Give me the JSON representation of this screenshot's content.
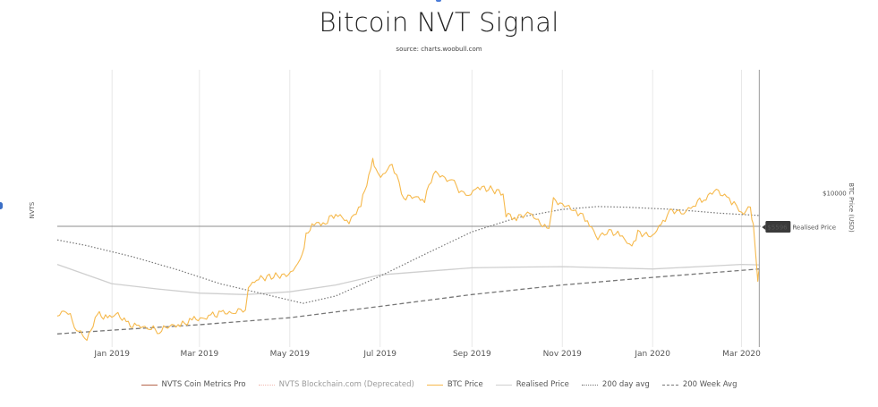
{
  "title": "Bitcoin NVT Signal",
  "subtitle": "source: charts.woobull.com",
  "colors": {
    "btc_price": "#f6b94c",
    "realised_price": "#cfcfcf",
    "ma200d": "#777777",
    "ma200w": "#777777",
    "nvts_cm": "#b5654b",
    "nvts_bc": "#f2b8ae",
    "grid": "#e8e8e8",
    "zero_line": "#8c8c8c",
    "price_tag_bg": "#3a3a3a"
  },
  "chart_data": {
    "type": "line",
    "title": "Bitcoin NVT Signal",
    "subtitle": "source: charts.woobull.com",
    "ylabel_left": "NVTS",
    "ylabel_right": "BTC Price (USD)",
    "y_right_scale": "log",
    "y_right_ticks": [
      {
        "label": "$10000",
        "value": 10000
      }
    ],
    "x_range": [
      "2018-11-25",
      "2020-03-14"
    ],
    "x_ticks": [
      {
        "label": "Jan 2019",
        "date": "2019-01-01"
      },
      {
        "label": "Mar 2019",
        "date": "2019-03-01"
      },
      {
        "label": "May 2019",
        "date": "2019-05-01"
      },
      {
        "label": "Jul 2019",
        "date": "2019-07-01"
      },
      {
        "label": "Sep 2019",
        "date": "2019-09-01"
      },
      {
        "label": "Nov 2019",
        "date": "2019-11-01"
      },
      {
        "label": "Jan 2020",
        "date": "2020-01-01"
      },
      {
        "label": "Mar 2020",
        "date": "2020-03-01"
      }
    ],
    "grid": "vertical",
    "legend_position": "bottom",
    "annotations": {
      "current_price_label": "$5596",
      "current_price": 5596,
      "realised_price_label": "Realised Price"
    },
    "series": [
      {
        "name": "BTC Price",
        "points": [
          [
            "2018-11-25",
            3900
          ],
          [
            "2018-12-01",
            4100
          ],
          [
            "2018-12-08",
            3550
          ],
          [
            "2018-12-15",
            3250
          ],
          [
            "2018-12-22",
            3950
          ],
          [
            "2018-12-29",
            3850
          ],
          [
            "2019-01-05",
            3950
          ],
          [
            "2019-01-12",
            3650
          ],
          [
            "2019-01-19",
            3600
          ],
          [
            "2019-01-26",
            3570
          ],
          [
            "2019-02-02",
            3480
          ],
          [
            "2019-02-09",
            3640
          ],
          [
            "2019-02-16",
            3620
          ],
          [
            "2019-02-24",
            3810
          ],
          [
            "2019-03-03",
            3810
          ],
          [
            "2019-03-10",
            3920
          ],
          [
            "2019-03-17",
            4000
          ],
          [
            "2019-03-24",
            4000
          ],
          [
            "2019-04-01",
            4150
          ],
          [
            "2019-04-03",
            4900
          ],
          [
            "2019-04-10",
            5200
          ],
          [
            "2019-04-20",
            5300
          ],
          [
            "2019-04-30",
            5350
          ],
          [
            "2019-05-08",
            5900
          ],
          [
            "2019-05-12",
            7200
          ],
          [
            "2019-05-16",
            7900
          ],
          [
            "2019-05-25",
            8000
          ],
          [
            "2019-06-01",
            8600
          ],
          [
            "2019-06-10",
            8000
          ],
          [
            "2019-06-18",
            9200
          ],
          [
            "2019-06-22",
            10700
          ],
          [
            "2019-06-26",
            12900
          ],
          [
            "2019-06-28",
            11800
          ],
          [
            "2019-07-03",
            11500
          ],
          [
            "2019-07-09",
            12600
          ],
          [
            "2019-07-17",
            9700
          ],
          [
            "2019-07-24",
            9800
          ],
          [
            "2019-07-31",
            9500
          ],
          [
            "2019-08-06",
            11800
          ],
          [
            "2019-08-12",
            11400
          ],
          [
            "2019-08-20",
            10800
          ],
          [
            "2019-08-28",
            9700
          ],
          [
            "2019-09-05",
            10500
          ],
          [
            "2019-09-15",
            10300
          ],
          [
            "2019-09-22",
            10000
          ],
          [
            "2019-09-24",
            8500
          ],
          [
            "2019-10-01",
            8300
          ],
          [
            "2019-10-10",
            8600
          ],
          [
            "2019-10-23",
            7500
          ],
          [
            "2019-10-26",
            9500
          ],
          [
            "2019-11-01",
            9200
          ],
          [
            "2019-11-10",
            8800
          ],
          [
            "2019-11-18",
            8100
          ],
          [
            "2019-11-25",
            7100
          ],
          [
            "2019-12-01",
            7500
          ],
          [
            "2019-12-10",
            7300
          ],
          [
            "2019-12-18",
            6600
          ],
          [
            "2019-12-22",
            7400
          ],
          [
            "2020-01-01",
            7200
          ],
          [
            "2020-01-08",
            8100
          ],
          [
            "2020-01-14",
            8800
          ],
          [
            "2020-01-22",
            8600
          ],
          [
            "2020-01-30",
            9300
          ],
          [
            "2020-02-06",
            9700
          ],
          [
            "2020-02-13",
            10300
          ],
          [
            "2020-02-20",
            9600
          ],
          [
            "2020-02-25",
            9300
          ],
          [
            "2020-03-01",
            8600
          ],
          [
            "2020-03-07",
            8900
          ],
          [
            "2020-03-09",
            7900
          ],
          [
            "2020-03-12",
            5200
          ],
          [
            "2020-03-13",
            5596
          ]
        ]
      },
      {
        "name": "Realised Price",
        "points": [
          [
            "2018-11-25",
            5800
          ],
          [
            "2019-01-01",
            5000
          ],
          [
            "2019-02-01",
            4800
          ],
          [
            "2019-03-01",
            4650
          ],
          [
            "2019-04-01",
            4600
          ],
          [
            "2019-05-01",
            4700
          ],
          [
            "2019-06-01",
            4950
          ],
          [
            "2019-07-01",
            5350
          ],
          [
            "2019-08-01",
            5500
          ],
          [
            "2019-09-01",
            5650
          ],
          [
            "2019-10-01",
            5680
          ],
          [
            "2019-11-01",
            5700
          ],
          [
            "2019-12-01",
            5650
          ],
          [
            "2020-01-01",
            5600
          ],
          [
            "2020-02-01",
            5700
          ],
          [
            "2020-03-01",
            5800
          ],
          [
            "2020-03-13",
            5780
          ]
        ]
      },
      {
        "name": "200 day avg",
        "points": [
          [
            "2018-11-25",
            7000
          ],
          [
            "2018-12-15",
            6700
          ],
          [
            "2019-01-15",
            6150
          ],
          [
            "2019-02-15",
            5550
          ],
          [
            "2019-03-15",
            5000
          ],
          [
            "2019-04-15",
            4600
          ],
          [
            "2019-05-10",
            4300
          ],
          [
            "2019-06-01",
            4550
          ],
          [
            "2019-07-01",
            5300
          ],
          [
            "2019-08-01",
            6300
          ],
          [
            "2019-09-01",
            7450
          ],
          [
            "2019-10-01",
            8300
          ],
          [
            "2019-11-01",
            8850
          ],
          [
            "2019-11-25",
            9050
          ],
          [
            "2019-12-15",
            9000
          ],
          [
            "2020-01-15",
            8850
          ],
          [
            "2020-02-15",
            8600
          ],
          [
            "2020-03-13",
            8450
          ]
        ]
      },
      {
        "name": "200 Week Avg",
        "points": [
          [
            "2018-11-25",
            3400
          ],
          [
            "2019-01-01",
            3500
          ],
          [
            "2019-03-01",
            3650
          ],
          [
            "2019-05-01",
            3850
          ],
          [
            "2019-07-01",
            4200
          ],
          [
            "2019-09-01",
            4600
          ],
          [
            "2019-11-01",
            4950
          ],
          [
            "2020-01-01",
            5250
          ],
          [
            "2020-03-13",
            5600
          ]
        ]
      }
    ]
  },
  "legend": [
    {
      "label": "NVTS Coin Metrics Pro",
      "style": "solid",
      "color": "#b5654b",
      "deprecated": false
    },
    {
      "label": "NVTS Blockchain.com (Deprecated)",
      "style": "dotted",
      "color": "#f2b8ae",
      "deprecated": true
    },
    {
      "label": "BTC Price",
      "style": "solid",
      "color": "#f6b94c",
      "deprecated": false
    },
    {
      "label": "Realised Price",
      "style": "solid",
      "color": "#cfcfcf",
      "deprecated": false
    },
    {
      "label": "200 day avg",
      "style": "dotted",
      "color": "#777777",
      "deprecated": false
    },
    {
      "label": "200 Week Avg",
      "style": "dashed",
      "color": "#777777",
      "deprecated": false
    }
  ]
}
